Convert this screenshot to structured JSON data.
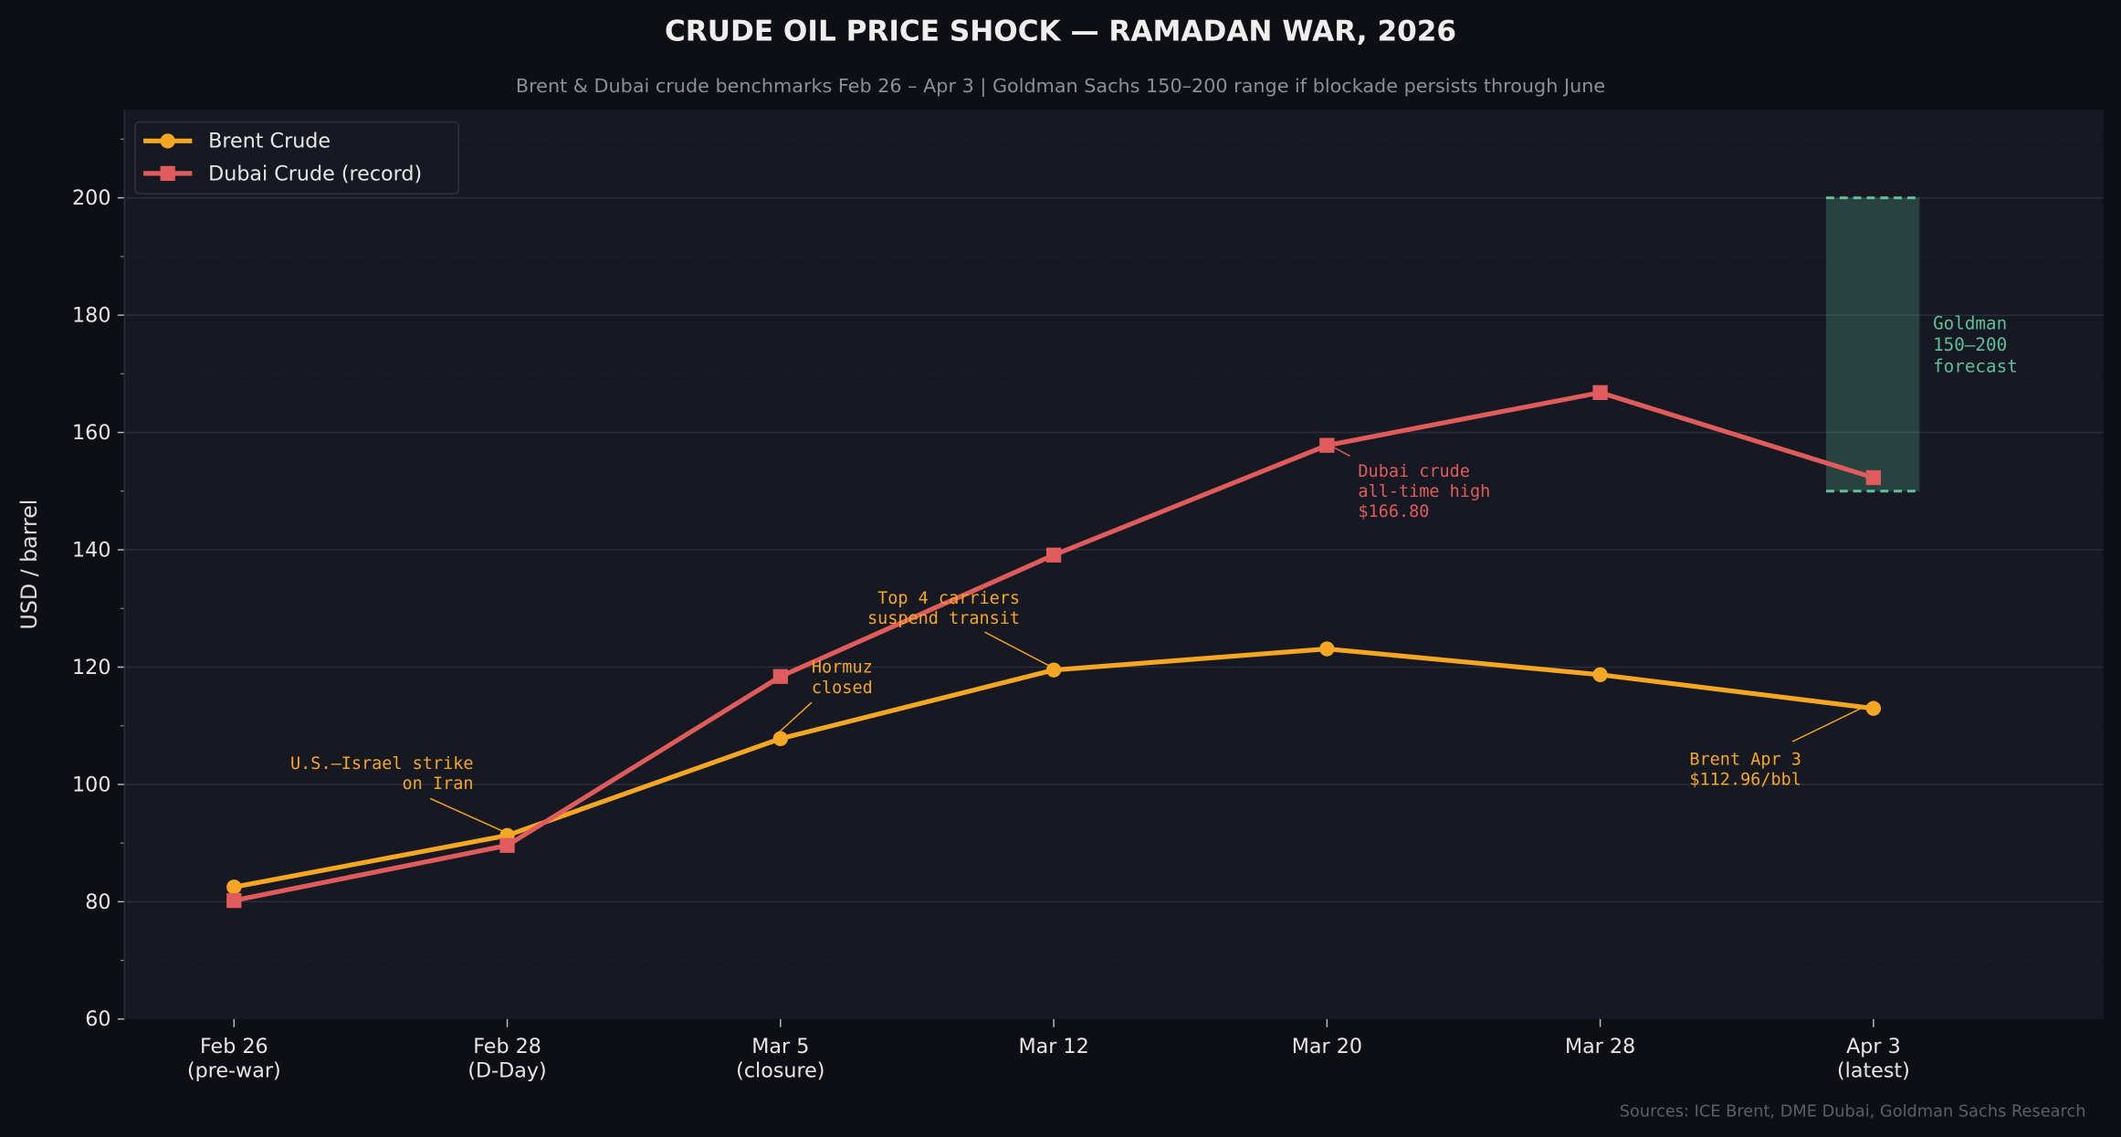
{
  "chart_data": {
    "type": "line",
    "title": "CRUDE OIL PRICE SHOCK — RAMADAN WAR, 2026",
    "subtitle": "Brent & Dubai crude benchmarks Feb 26 – Apr 3  |  Goldman Sachs 150–200 range if blockade persists through June",
    "xlabel": "",
    "ylabel": "USD / barrel",
    "ylim": [
      60,
      215
    ],
    "yticks": [
      60,
      80,
      100,
      120,
      140,
      160,
      180,
      200
    ],
    "grid": true,
    "legend_position": "top-left",
    "categories": [
      [
        "Feb 26",
        "(pre-war)"
      ],
      [
        "Feb 28",
        "(D-Day)"
      ],
      [
        "Mar 5",
        "(closure)"
      ],
      [
        "Mar 12"
      ],
      [
        "Mar 20"
      ],
      [
        "Mar 28"
      ],
      [
        "Apr 3",
        "(latest)"
      ]
    ],
    "series": [
      {
        "name": "Brent Crude",
        "color": "#f5a623",
        "marker": "circle",
        "values": [
          82.5,
          91.3,
          107.8,
          119.5,
          123.1,
          118.7,
          112.96
        ]
      },
      {
        "name": "Dubai Crude (record)",
        "color": "#e05c5c",
        "marker": "square",
        "values": [
          80.2,
          89.6,
          118.4,
          139.1,
          157.8,
          166.8,
          152.3
        ]
      }
    ],
    "forecast_band": {
      "low": 150,
      "high": 200,
      "category_index": 6,
      "color": "#5fbf9a",
      "label": [
        "Goldman",
        "150–200",
        "forecast"
      ]
    },
    "annotations": [
      {
        "lines": [
          "U.S.–Israel strike",
          "on Iran"
        ],
        "series": 0,
        "index": 1,
        "color": "#f5a623"
      },
      {
        "lines": [
          "Hormuz",
          "closed"
        ],
        "series": 0,
        "index": 2,
        "color": "#f5a623"
      },
      {
        "lines": [
          "Top 4 carriers",
          "suspend transit"
        ],
        "series": 0,
        "index": 3,
        "color": "#f5a623"
      },
      {
        "lines": [
          "Dubai crude",
          "all-time high",
          "$166.80"
        ],
        "series": 1,
        "index": 4,
        "color": "#e05c5c"
      },
      {
        "lines": [
          "Brent Apr 3",
          "$112.96/bbl"
        ],
        "series": 0,
        "index": 6,
        "color": "#f5a623"
      }
    ],
    "source": "Sources: ICE Brent, DME Dubai, Goldman Sachs Research"
  }
}
